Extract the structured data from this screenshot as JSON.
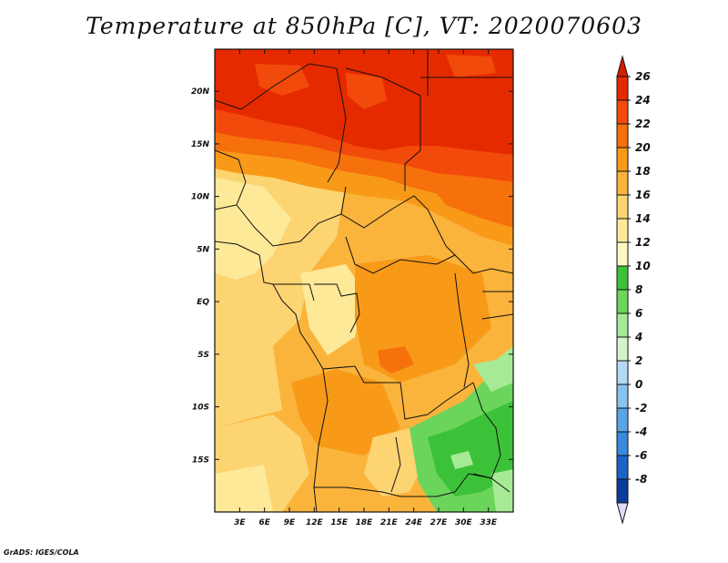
{
  "title": "Temperature at 850hPa [C], VT: 2020070603",
  "credit": "GrADS: IGES/COLA",
  "map": {
    "lon_range": [
      0,
      36
    ],
    "lat_range": [
      -20,
      24
    ],
    "lon_ticks": [
      {
        "lon": 3,
        "label": "3E"
      },
      {
        "lon": 6,
        "label": "6E"
      },
      {
        "lon": 9,
        "label": "9E"
      },
      {
        "lon": 12,
        "label": "12E"
      },
      {
        "lon": 15,
        "label": "15E"
      },
      {
        "lon": 18,
        "label": "18E"
      },
      {
        "lon": 21,
        "label": "21E"
      },
      {
        "lon": 24,
        "label": "24E"
      },
      {
        "lon": 27,
        "label": "27E"
      },
      {
        "lon": 30,
        "label": "30E"
      },
      {
        "lon": 33,
        "label": "33E"
      }
    ],
    "lat_ticks": [
      {
        "lat": 20,
        "label": "20N"
      },
      {
        "lat": 15,
        "label": "15N"
      },
      {
        "lat": 10,
        "label": "10N"
      },
      {
        "lat": 5,
        "label": "5N"
      },
      {
        "lat": 0,
        "label": "EQ"
      },
      {
        "lat": -5,
        "label": "5S"
      },
      {
        "lat": -10,
        "label": "10S"
      },
      {
        "lat": -15,
        "label": "15S"
      }
    ]
  },
  "colorbar": {
    "levels": [
      {
        "label": "26",
        "color": "#e62a00"
      },
      {
        "label": "24",
        "color": "#f24a0a"
      },
      {
        "label": "22",
        "color": "#f6700c"
      },
      {
        "label": "20",
        "color": "#f89a18"
      },
      {
        "label": "18",
        "color": "#fab43c"
      },
      {
        "label": "16",
        "color": "#fcd472"
      },
      {
        "label": "14",
        "color": "#fde998"
      },
      {
        "label": "12",
        "color": "#fcf7c4"
      },
      {
        "label": "10",
        "color": "#3cc238"
      },
      {
        "label": "8",
        "color": "#6ad55a"
      },
      {
        "label": "6",
        "color": "#a7ea96"
      },
      {
        "label": "4",
        "color": "#d4f3cc"
      },
      {
        "label": "2",
        "color": "#b4d9f4"
      },
      {
        "label": "0",
        "color": "#88c2ee"
      },
      {
        "label": "-2",
        "color": "#5aa5e6"
      },
      {
        "label": "-4",
        "color": "#3889dc"
      },
      {
        "label": "-6",
        "color": "#1c64c8"
      },
      {
        "label": "-8",
        "color": "#0c3c9c"
      }
    ],
    "top_color": "#d42000",
    "bottom_color": "#0a1a6e",
    "bottom_triangle_color": "#dcdcf4"
  }
}
